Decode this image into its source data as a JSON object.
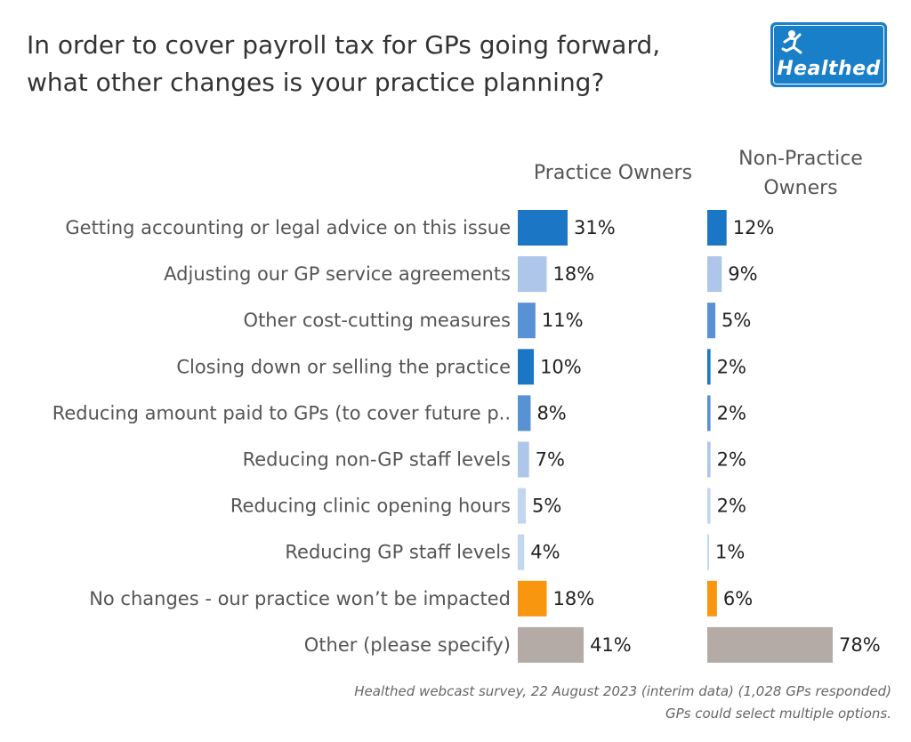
{
  "header": {
    "title_lines": [
      "In order to cover payroll tax for GPs going forward,",
      "what other changes is your practice planning?"
    ],
    "logo_text": "Healthed"
  },
  "columns": {
    "practice_owners": "Practice Owners",
    "non_practice_owners_lines": [
      "Non-Practice",
      "Owners"
    ]
  },
  "chart_data": {
    "type": "bar",
    "orientation": "horizontal",
    "categories": [
      "Getting accounting or legal advice on this issue",
      "Adjusting our GP service agreements",
      "Other cost-cutting measures",
      "Closing down or selling the practice",
      "Reducing amount paid to GPs (to cover future p..",
      "Reducing non-GP staff levels",
      "Reducing clinic opening hours",
      "Reducing GP staff levels",
      "No changes - our practice won’t be impacted",
      "Other (please specify)"
    ],
    "series": [
      {
        "name": "Practice Owners",
        "values": [
          31,
          18,
          11,
          10,
          8,
          7,
          5,
          4,
          18,
          41
        ],
        "labels": [
          "31%",
          "18%",
          "11%",
          "10%",
          "8%",
          "7%",
          "5%",
          "4%",
          "18%",
          "41%"
        ]
      },
      {
        "name": "Non-Practice Owners",
        "values": [
          12,
          9,
          5,
          2,
          2,
          2,
          2,
          1,
          6,
          78
        ],
        "labels": [
          "12%",
          "9%",
          "5%",
          "2%",
          "2%",
          "2%",
          "2%",
          "1%",
          "6%",
          "78%"
        ]
      }
    ],
    "bar_colors": [
      "#1b77c5",
      "#adc6e9",
      "#5891d4",
      "#1b77c5",
      "#5891d4",
      "#adc6e9",
      "#c2d6ef",
      "#c2d6ef",
      "#f8960f",
      "#b4aba7"
    ],
    "legend": "none",
    "grid": false
  },
  "footnote": {
    "line1": "Healthed webcast survey, 22 August 2023 (interim data) (1,028 GPs responded)",
    "line2": "GPs could select multiple options."
  }
}
